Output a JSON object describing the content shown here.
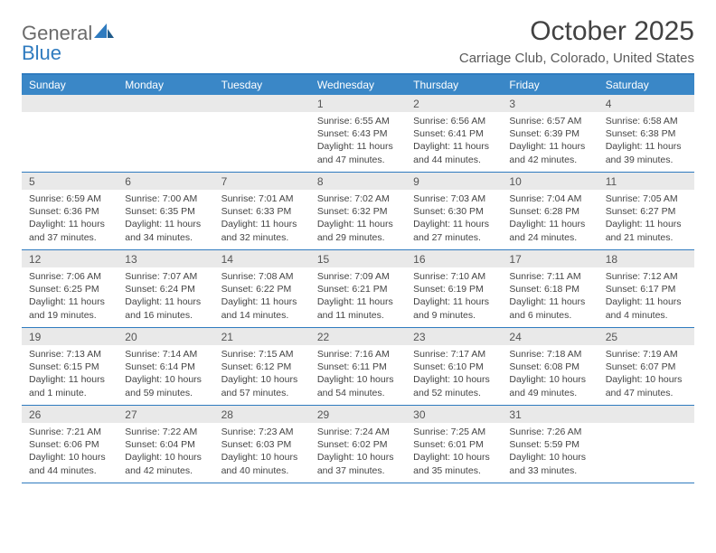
{
  "logo": {
    "gray": "General",
    "blue": "Blue"
  },
  "title": "October 2025",
  "location": "Carriage Club, Colorado, United States",
  "colors": {
    "accent": "#3a87c7",
    "border": "#2f7bbf",
    "daynum_bg": "#e9e9e9",
    "text": "#444444",
    "title_text": "#424242"
  },
  "days_of_week": [
    "Sunday",
    "Monday",
    "Tuesday",
    "Wednesday",
    "Thursday",
    "Friday",
    "Saturday"
  ],
  "weeks": [
    [
      {
        "n": "",
        "rise": "",
        "set": "",
        "day": ""
      },
      {
        "n": "",
        "rise": "",
        "set": "",
        "day": ""
      },
      {
        "n": "",
        "rise": "",
        "set": "",
        "day": ""
      },
      {
        "n": "1",
        "rise": "Sunrise: 6:55 AM",
        "set": "Sunset: 6:43 PM",
        "day": "Daylight: 11 hours and 47 minutes."
      },
      {
        "n": "2",
        "rise": "Sunrise: 6:56 AM",
        "set": "Sunset: 6:41 PM",
        "day": "Daylight: 11 hours and 44 minutes."
      },
      {
        "n": "3",
        "rise": "Sunrise: 6:57 AM",
        "set": "Sunset: 6:39 PM",
        "day": "Daylight: 11 hours and 42 minutes."
      },
      {
        "n": "4",
        "rise": "Sunrise: 6:58 AM",
        "set": "Sunset: 6:38 PM",
        "day": "Daylight: 11 hours and 39 minutes."
      }
    ],
    [
      {
        "n": "5",
        "rise": "Sunrise: 6:59 AM",
        "set": "Sunset: 6:36 PM",
        "day": "Daylight: 11 hours and 37 minutes."
      },
      {
        "n": "6",
        "rise": "Sunrise: 7:00 AM",
        "set": "Sunset: 6:35 PM",
        "day": "Daylight: 11 hours and 34 minutes."
      },
      {
        "n": "7",
        "rise": "Sunrise: 7:01 AM",
        "set": "Sunset: 6:33 PM",
        "day": "Daylight: 11 hours and 32 minutes."
      },
      {
        "n": "8",
        "rise": "Sunrise: 7:02 AM",
        "set": "Sunset: 6:32 PM",
        "day": "Daylight: 11 hours and 29 minutes."
      },
      {
        "n": "9",
        "rise": "Sunrise: 7:03 AM",
        "set": "Sunset: 6:30 PM",
        "day": "Daylight: 11 hours and 27 minutes."
      },
      {
        "n": "10",
        "rise": "Sunrise: 7:04 AM",
        "set": "Sunset: 6:28 PM",
        "day": "Daylight: 11 hours and 24 minutes."
      },
      {
        "n": "11",
        "rise": "Sunrise: 7:05 AM",
        "set": "Sunset: 6:27 PM",
        "day": "Daylight: 11 hours and 21 minutes."
      }
    ],
    [
      {
        "n": "12",
        "rise": "Sunrise: 7:06 AM",
        "set": "Sunset: 6:25 PM",
        "day": "Daylight: 11 hours and 19 minutes."
      },
      {
        "n": "13",
        "rise": "Sunrise: 7:07 AM",
        "set": "Sunset: 6:24 PM",
        "day": "Daylight: 11 hours and 16 minutes."
      },
      {
        "n": "14",
        "rise": "Sunrise: 7:08 AM",
        "set": "Sunset: 6:22 PM",
        "day": "Daylight: 11 hours and 14 minutes."
      },
      {
        "n": "15",
        "rise": "Sunrise: 7:09 AM",
        "set": "Sunset: 6:21 PM",
        "day": "Daylight: 11 hours and 11 minutes."
      },
      {
        "n": "16",
        "rise": "Sunrise: 7:10 AM",
        "set": "Sunset: 6:19 PM",
        "day": "Daylight: 11 hours and 9 minutes."
      },
      {
        "n": "17",
        "rise": "Sunrise: 7:11 AM",
        "set": "Sunset: 6:18 PM",
        "day": "Daylight: 11 hours and 6 minutes."
      },
      {
        "n": "18",
        "rise": "Sunrise: 7:12 AM",
        "set": "Sunset: 6:17 PM",
        "day": "Daylight: 11 hours and 4 minutes."
      }
    ],
    [
      {
        "n": "19",
        "rise": "Sunrise: 7:13 AM",
        "set": "Sunset: 6:15 PM",
        "day": "Daylight: 11 hours and 1 minute."
      },
      {
        "n": "20",
        "rise": "Sunrise: 7:14 AM",
        "set": "Sunset: 6:14 PM",
        "day": "Daylight: 10 hours and 59 minutes."
      },
      {
        "n": "21",
        "rise": "Sunrise: 7:15 AM",
        "set": "Sunset: 6:12 PM",
        "day": "Daylight: 10 hours and 57 minutes."
      },
      {
        "n": "22",
        "rise": "Sunrise: 7:16 AM",
        "set": "Sunset: 6:11 PM",
        "day": "Daylight: 10 hours and 54 minutes."
      },
      {
        "n": "23",
        "rise": "Sunrise: 7:17 AM",
        "set": "Sunset: 6:10 PM",
        "day": "Daylight: 10 hours and 52 minutes."
      },
      {
        "n": "24",
        "rise": "Sunrise: 7:18 AM",
        "set": "Sunset: 6:08 PM",
        "day": "Daylight: 10 hours and 49 minutes."
      },
      {
        "n": "25",
        "rise": "Sunrise: 7:19 AM",
        "set": "Sunset: 6:07 PM",
        "day": "Daylight: 10 hours and 47 minutes."
      }
    ],
    [
      {
        "n": "26",
        "rise": "Sunrise: 7:21 AM",
        "set": "Sunset: 6:06 PM",
        "day": "Daylight: 10 hours and 44 minutes."
      },
      {
        "n": "27",
        "rise": "Sunrise: 7:22 AM",
        "set": "Sunset: 6:04 PM",
        "day": "Daylight: 10 hours and 42 minutes."
      },
      {
        "n": "28",
        "rise": "Sunrise: 7:23 AM",
        "set": "Sunset: 6:03 PM",
        "day": "Daylight: 10 hours and 40 minutes."
      },
      {
        "n": "29",
        "rise": "Sunrise: 7:24 AM",
        "set": "Sunset: 6:02 PM",
        "day": "Daylight: 10 hours and 37 minutes."
      },
      {
        "n": "30",
        "rise": "Sunrise: 7:25 AM",
        "set": "Sunset: 6:01 PM",
        "day": "Daylight: 10 hours and 35 minutes."
      },
      {
        "n": "31",
        "rise": "Sunrise: 7:26 AM",
        "set": "Sunset: 5:59 PM",
        "day": "Daylight: 10 hours and 33 minutes."
      },
      {
        "n": "",
        "rise": "",
        "set": "",
        "day": ""
      }
    ]
  ]
}
